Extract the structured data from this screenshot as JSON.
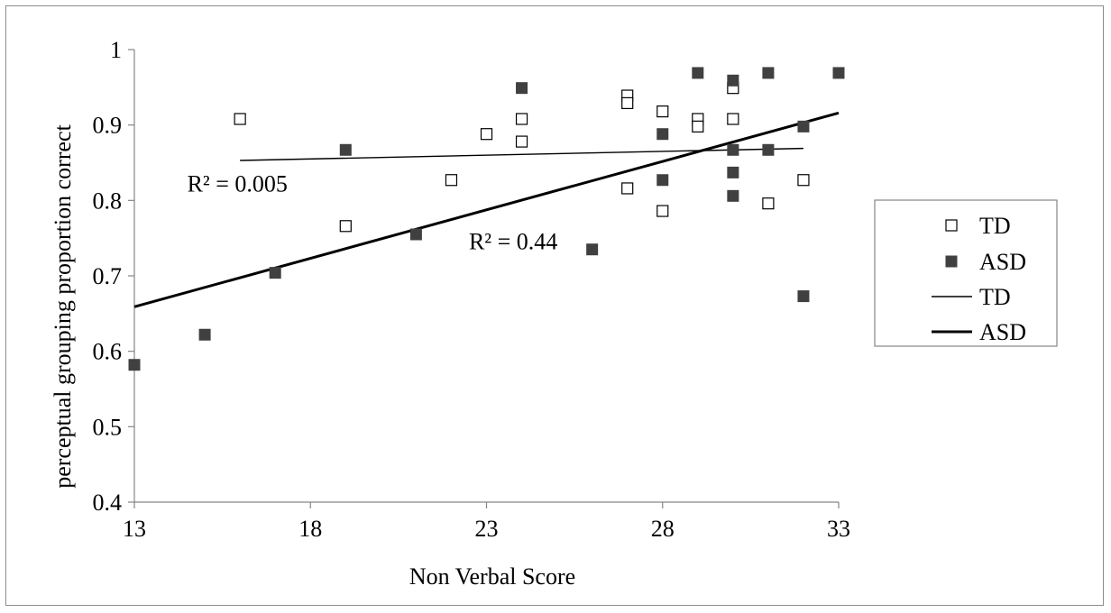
{
  "chart_data": {
    "type": "scatter",
    "title": "",
    "xlabel": "Non Verbal Score",
    "ylabel": "perceptual grouping proportion correct",
    "xlim": [
      13,
      33
    ],
    "ylim": [
      0.4,
      1
    ],
    "xticks": [
      "13",
      "18",
      "23",
      "28",
      "33"
    ],
    "yticks": [
      "0.4",
      "0.5",
      "0.6",
      "0.7",
      "0.8",
      "0.9",
      "1"
    ],
    "grid": false,
    "legend_position": "right",
    "series": [
      {
        "name": "TD",
        "marker": "open-square",
        "points": [
          [
            16,
            0.908
          ],
          [
            19,
            0.766
          ],
          [
            22,
            0.827
          ],
          [
            23,
            0.888
          ],
          [
            24,
            0.908
          ],
          [
            24,
            0.878
          ],
          [
            27,
            0.939
          ],
          [
            27,
            0.929
          ],
          [
            27,
            0.816
          ],
          [
            28,
            0.918
          ],
          [
            28,
            0.786
          ],
          [
            29,
            0.908
          ],
          [
            29,
            0.898
          ],
          [
            30,
            0.949
          ],
          [
            30,
            0.908
          ],
          [
            31,
            0.796
          ],
          [
            32,
            0.827
          ]
        ]
      },
      {
        "name": "ASD",
        "marker": "filled-square",
        "points": [
          [
            13,
            0.582
          ],
          [
            15,
            0.622
          ],
          [
            17,
            0.704
          ],
          [
            19,
            0.867
          ],
          [
            21,
            0.755
          ],
          [
            24,
            0.949
          ],
          [
            26,
            0.735
          ],
          [
            28,
            0.888
          ],
          [
            28,
            0.827
          ],
          [
            29,
            0.969
          ],
          [
            30,
            0.959
          ],
          [
            30,
            0.867
          ],
          [
            30,
            0.837
          ],
          [
            30,
            0.806
          ],
          [
            31,
            0.969
          ],
          [
            31,
            0.867
          ],
          [
            32,
            0.898
          ],
          [
            32,
            0.673
          ],
          [
            33,
            0.969
          ]
        ]
      }
    ],
    "trendlines": [
      {
        "name": "TD",
        "style": "thin",
        "x": [
          16,
          32
        ],
        "y": [
          0.853,
          0.869
        ]
      },
      {
        "name": "ASD",
        "style": "thick",
        "x": [
          13,
          33
        ],
        "y": [
          0.659,
          0.916
        ]
      }
    ],
    "annotations": [
      {
        "text": "R² = 0.005",
        "x": 14.5,
        "y": 0.812
      },
      {
        "text": "R² = 0.44",
        "x": 22.5,
        "y": 0.735
      }
    ],
    "legend": [
      "TD",
      "ASD",
      "TD",
      "ASD"
    ],
    "colors": {
      "marker_fill": "#404040",
      "line": "#000000",
      "open_marker_stroke": "#000000"
    }
  }
}
